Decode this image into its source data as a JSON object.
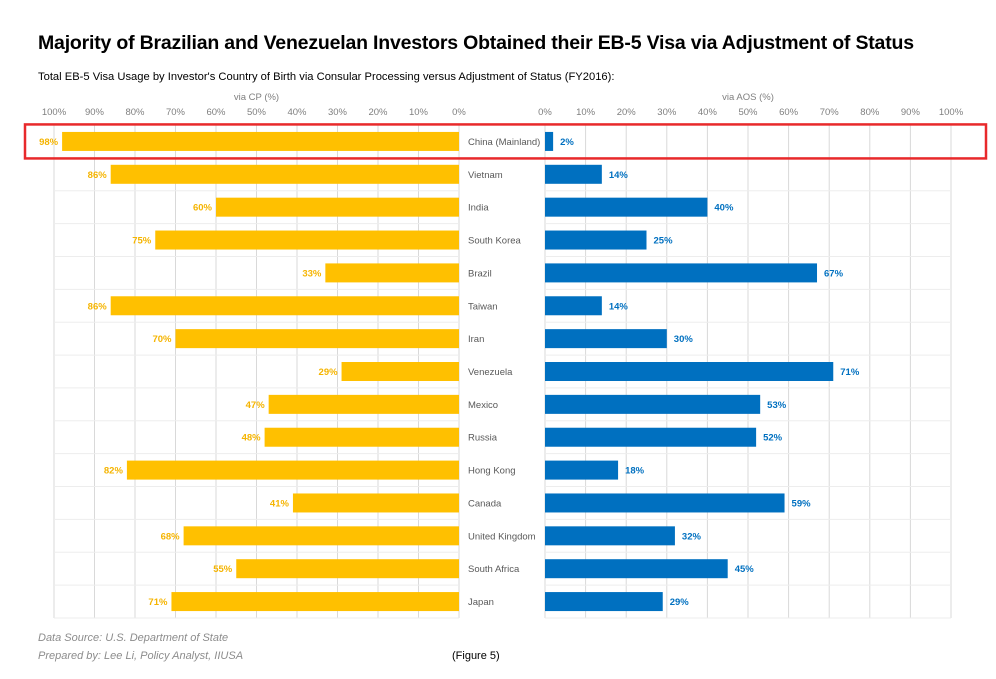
{
  "title": "Majority of Brazilian and Venezuelan Investors Obtained their EB-5 Visa via Adjustment of Status",
  "subtitle": "Total EB-5 Visa Usage by Investor's Country of Birth via Consular Processing versus Adjustment of Status (FY2016):",
  "footer": {
    "source": "Data Source: U.S. Department of State",
    "prepared_by": "Prepared by: Lee Li, Policy Analyst, IIUSA",
    "figure": "(Figure 5)"
  },
  "colors": {
    "cp_bar": "#FFC000",
    "cp_label": "#F5B400",
    "aos_bar": "#0070C0",
    "aos_label": "#0070C0",
    "grid": "#D9D9D9",
    "axis_text": "#7F7F7F",
    "highlight": "#E8292B"
  },
  "chart_data": {
    "type": "bar",
    "orientation": "horizontal",
    "layout": "butterfly",
    "categories": [
      "China (Mainland)",
      "Vietnam",
      "India",
      "South Korea",
      "Brazil",
      "Taiwan",
      "Iran",
      "Venezuela",
      "Mexico",
      "Russia",
      "Hong Kong",
      "Canada",
      "United Kingdom",
      "South Africa",
      "Japan"
    ],
    "series": [
      {
        "name": "via CP (%)",
        "side": "left",
        "values": [
          98,
          86,
          60,
          75,
          33,
          86,
          70,
          29,
          47,
          48,
          82,
          41,
          68,
          55,
          71
        ],
        "data_labels": [
          "98%",
          "86%",
          "60%",
          "75%",
          "33%",
          "86%",
          "70%",
          "29%",
          "47%",
          "48%",
          "82%",
          "41%",
          "68%",
          "55%",
          "71%"
        ]
      },
      {
        "name": "via AOS (%)",
        "side": "right",
        "values": [
          2,
          14,
          40,
          25,
          67,
          14,
          30,
          71,
          53,
          52,
          18,
          59,
          32,
          45,
          29
        ],
        "data_labels": [
          "2%",
          "14%",
          "40%",
          "25%",
          "67%",
          "14%",
          "30%",
          "71%",
          "53%",
          "52%",
          "18%",
          "59%",
          "32%",
          "45%",
          "29%"
        ]
      }
    ],
    "left_axis": {
      "label": "via CP (%)",
      "range": [
        100,
        0
      ],
      "ticks": [
        "100%",
        "90%",
        "80%",
        "70%",
        "60%",
        "50%",
        "40%",
        "30%",
        "20%",
        "10%",
        "0%"
      ]
    },
    "right_axis": {
      "label": "via AOS (%)",
      "range": [
        0,
        100
      ],
      "ticks": [
        "0%",
        "10%",
        "20%",
        "30%",
        "40%",
        "50%",
        "60%",
        "70%",
        "80%",
        "90%",
        "100%"
      ]
    },
    "grid": true,
    "legend": "none",
    "highlighted_category": "China (Mainland)"
  }
}
